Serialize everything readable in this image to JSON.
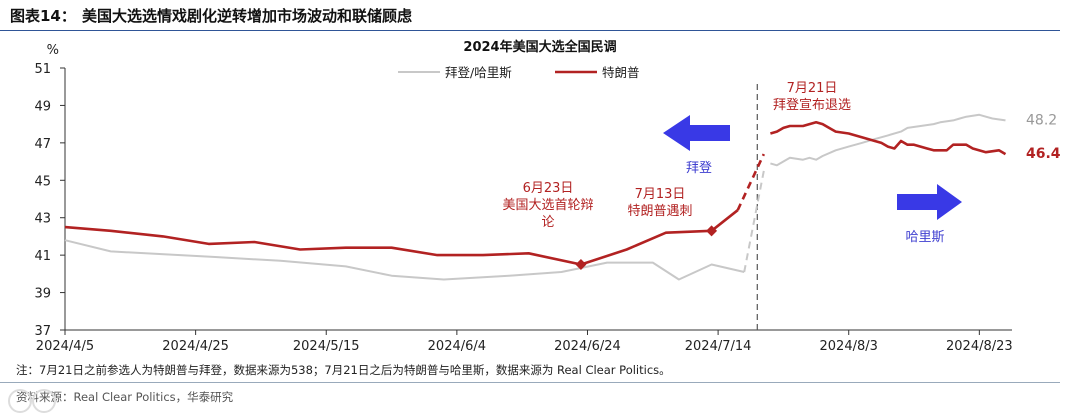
{
  "figure": {
    "label": "图表14：",
    "title": "美国大选选情戏剧化逆转增加市场波动和联储顾虑"
  },
  "chart_data": {
    "type": "line",
    "title": "2024年美国大选全国民调",
    "ylabel": "%",
    "ylim": [
      37,
      51
    ],
    "yticks": [
      37,
      39,
      41,
      43,
      45,
      47,
      49,
      51
    ],
    "xlim": [
      "2024-04-05",
      "2024-08-28"
    ],
    "xticks": [
      "2024/4/5",
      "2024/4/25",
      "2024/5/15",
      "2024/6/4",
      "2024/6/24",
      "2024/7/14",
      "2024/8/3",
      "2024/8/23"
    ],
    "legend_position": "top-center",
    "series": [
      {
        "name": "拜登/哈里斯",
        "color": "#c8c8c8",
        "end_label": "48.2",
        "segments": [
          {
            "style": "solid",
            "points": [
              [
                "2024-04-05",
                41.8
              ],
              [
                "2024-04-12",
                41.2
              ],
              [
                "2024-04-28",
                40.9
              ],
              [
                "2024-05-08",
                40.7
              ],
              [
                "2024-05-18",
                40.4
              ],
              [
                "2024-05-25",
                39.9
              ],
              [
                "2024-06-02",
                39.7
              ],
              [
                "2024-06-12",
                39.9
              ],
              [
                "2024-06-20",
                40.1
              ],
              [
                "2024-06-27",
                40.6
              ],
              [
                "2024-07-04",
                40.6
              ],
              [
                "2024-07-08",
                39.7
              ],
              [
                "2024-07-13",
                40.5
              ],
              [
                "2024-07-18",
                40.1
              ]
            ]
          },
          {
            "style": "dashed",
            "points": [
              [
                "2024-07-18",
                40.1
              ],
              [
                "2024-07-21",
                45.5
              ]
            ]
          },
          {
            "style": "solid",
            "points": [
              [
                "2024-07-22",
                45.9
              ],
              [
                "2024-07-23",
                45.8
              ],
              [
                "2024-07-25",
                46.2
              ],
              [
                "2024-07-27",
                46.1
              ],
              [
                "2024-07-28",
                46.2
              ],
              [
                "2024-07-29",
                46.1
              ],
              [
                "2024-07-30",
                46.3
              ],
              [
                "2024-08-01",
                46.6
              ],
              [
                "2024-08-03",
                46.8
              ],
              [
                "2024-08-05",
                47.0
              ],
              [
                "2024-08-07",
                47.2
              ],
              [
                "2024-08-09",
                47.4
              ],
              [
                "2024-08-11",
                47.6
              ],
              [
                "2024-08-12",
                47.8
              ],
              [
                "2024-08-14",
                47.9
              ],
              [
                "2024-08-16",
                48.0
              ],
              [
                "2024-08-17",
                48.1
              ],
              [
                "2024-08-19",
                48.2
              ],
              [
                "2024-08-20",
                48.3
              ],
              [
                "2024-08-21",
                48.4
              ],
              [
                "2024-08-23",
                48.5
              ],
              [
                "2024-08-24",
                48.4
              ],
              [
                "2024-08-25",
                48.3
              ],
              [
                "2024-08-27",
                48.2
              ]
            ]
          }
        ]
      },
      {
        "name": "特朗普",
        "color": "#b22222",
        "end_label": "46.4",
        "segments": [
          {
            "style": "solid",
            "points": [
              [
                "2024-04-05",
                42.5
              ],
              [
                "2024-04-12",
                42.3
              ],
              [
                "2024-04-20",
                42.0
              ],
              [
                "2024-04-27",
                41.6
              ],
              [
                "2024-05-04",
                41.7
              ],
              [
                "2024-05-11",
                41.3
              ],
              [
                "2024-05-18",
                41.4
              ],
              [
                "2024-05-25",
                41.4
              ],
              [
                "2024-06-01",
                41.0
              ],
              [
                "2024-06-08",
                41.0
              ],
              [
                "2024-06-15",
                41.1
              ],
              [
                "2024-06-23",
                40.5
              ],
              [
                "2024-06-30",
                41.3
              ],
              [
                "2024-07-06",
                42.2
              ],
              [
                "2024-07-13",
                42.3
              ],
              [
                "2024-07-17",
                43.4
              ]
            ]
          },
          {
            "style": "dashed",
            "points": [
              [
                "2024-07-17",
                43.4
              ],
              [
                "2024-07-21",
                46.4
              ]
            ]
          },
          {
            "style": "solid",
            "points": [
              [
                "2024-07-22",
                47.5
              ],
              [
                "2024-07-23",
                47.6
              ],
              [
                "2024-07-24",
                47.8
              ],
              [
                "2024-07-25",
                47.9
              ],
              [
                "2024-07-26",
                47.9
              ],
              [
                "2024-07-27",
                47.9
              ],
              [
                "2024-07-28",
                48.0
              ],
              [
                "2024-07-29",
                48.1
              ],
              [
                "2024-07-30",
                48.0
              ],
              [
                "2024-07-31",
                47.8
              ],
              [
                "2024-08-01",
                47.6
              ],
              [
                "2024-08-03",
                47.5
              ],
              [
                "2024-08-05",
                47.3
              ],
              [
                "2024-08-07",
                47.1
              ],
              [
                "2024-08-08",
                47.0
              ],
              [
                "2024-08-09",
                46.8
              ],
              [
                "2024-08-10",
                46.7
              ],
              [
                "2024-08-11",
                47.1
              ],
              [
                "2024-08-12",
                46.9
              ],
              [
                "2024-08-13",
                46.9
              ],
              [
                "2024-08-15",
                46.7
              ],
              [
                "2024-08-16",
                46.6
              ],
              [
                "2024-08-18",
                46.6
              ],
              [
                "2024-08-19",
                46.9
              ],
              [
                "2024-08-21",
                46.9
              ],
              [
                "2024-08-22",
                46.7
              ],
              [
                "2024-08-24",
                46.5
              ],
              [
                "2024-08-26",
                46.6
              ],
              [
                "2024-08-27",
                46.4
              ]
            ]
          }
        ]
      }
    ],
    "markers": [
      {
        "x": "2024-06-23",
        "y": 40.5,
        "shape": "diamond"
      },
      {
        "x": "2024-07-13",
        "y": 42.3,
        "shape": "diamond"
      }
    ],
    "event_line": "2024-07-20",
    "annotations": [
      {
        "lines": [
          "6月23日",
          "美国大选首轮辩",
          "论"
        ],
        "color": "#b22222"
      },
      {
        "lines": [
          "7月13日",
          "特朗普遇刺"
        ],
        "color": "#b22222"
      },
      {
        "lines": [
          "7月21日",
          "拜登宣布退选"
        ],
        "color": "#b22222"
      },
      {
        "lines": [
          "拜登"
        ],
        "color": "#4040d0",
        "arrow": "left"
      },
      {
        "lines": [
          "哈里斯"
        ],
        "color": "#4040d0",
        "arrow": "right"
      }
    ]
  },
  "note": "注：7月21日之前参选人为特朗普与拜登，数据来源为538；7月21日之后为特朗普与哈里斯，数据来源为 Real Clear Politics。",
  "source": "资料来源：Real Clear Politics，华泰研究"
}
